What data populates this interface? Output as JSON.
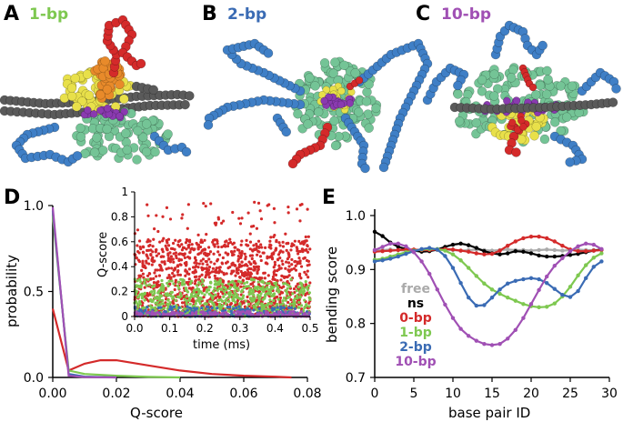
{
  "panels": {
    "A": {
      "letter": "A",
      "title": "1-bp",
      "title_color": "#7ec850"
    },
    "B": {
      "letter": "B",
      "title": "2-bp",
      "title_color": "#3a6bb4"
    },
    "C": {
      "letter": "C",
      "title": "10-bp",
      "title_color": "#a050b4"
    },
    "D": {
      "letter": "D"
    },
    "E": {
      "letter": "E"
    }
  },
  "colors": {
    "dna": "#5a5a5a",
    "h3": "#3f7fc6",
    "h4": "#e8e04a",
    "h2a": "#d42a2a",
    "h2b": "#74c496",
    "orange": "#e88a2a",
    "purple": "#8a3ab0"
  },
  "chart_data": [
    {
      "type": "line",
      "panel": "D",
      "xlabel": "Q-score",
      "ylabel": "probability",
      "xlim": [
        0,
        0.08
      ],
      "ylim": [
        0,
        1.0
      ],
      "xticks": [
        "0.00",
        "0.02",
        "0.04",
        "0.06",
        "0.08"
      ],
      "yticks": [
        "0.0",
        "0.5",
        "1.0"
      ],
      "series": [
        {
          "color": "#d42a2a",
          "x": [
            0,
            0.005,
            0.01,
            0.015,
            0.02,
            0.03,
            0.04,
            0.05,
            0.06,
            0.07,
            0.075
          ],
          "y": [
            0.4,
            0.04,
            0.08,
            0.1,
            0.1,
            0.07,
            0.04,
            0.02,
            0.01,
            0.004,
            0
          ]
        },
        {
          "color": "#7ec850",
          "x": [
            0,
            0.005,
            0.01,
            0.02,
            0.03,
            0.04
          ],
          "y": [
            0.94,
            0.04,
            0.02,
            0.01,
            0.003,
            0
          ]
        },
        {
          "color": "#3a6bb4",
          "x": [
            0,
            0.005,
            0.01,
            0.02
          ],
          "y": [
            0.97,
            0.02,
            0.005,
            0
          ]
        },
        {
          "color": "#a050b4",
          "x": [
            0,
            0.005,
            0.01,
            0.02
          ],
          "y": [
            0.99,
            0.01,
            0.002,
            0
          ]
        }
      ]
    },
    {
      "type": "scatter",
      "panel": "D-inset",
      "xlabel": "time (ms)",
      "ylabel": "Q-score",
      "xlim": [
        0,
        0.5
      ],
      "ylim": [
        0,
        1.0
      ],
      "xticks": [
        "0.0",
        "0.1",
        "0.2",
        "0.3",
        "0.4",
        "0.5"
      ],
      "yticks": [
        "0",
        "0.2",
        "0.4",
        "0.6",
        "0.8",
        "1"
      ],
      "series": [
        {
          "color": "#d42a2a",
          "band": [
            0.0,
            0.62
          ],
          "density": "high"
        },
        {
          "color": "#7ec850",
          "band": [
            0.0,
            0.3
          ],
          "density": "medium"
        },
        {
          "color": "#3a6bb4",
          "band": [
            0.0,
            0.08
          ],
          "density": "low"
        },
        {
          "color": "#a050b4",
          "band": [
            0.0,
            0.04
          ],
          "density": "low"
        }
      ]
    },
    {
      "type": "line",
      "panel": "E",
      "xlabel": "base pair ID",
      "ylabel": "bending score",
      "xlim": [
        0,
        30
      ],
      "ylim": [
        0.7,
        1.0
      ],
      "xticks": [
        "0",
        "5",
        "10",
        "15",
        "20",
        "25",
        "30"
      ],
      "yticks": [
        "0.7",
        "0.8",
        "0.9",
        "1.0"
      ],
      "legend": [
        "free",
        "ns",
        "0-bp",
        "1-bp",
        "2-bp",
        "10-bp"
      ],
      "series": [
        {
          "name": "free",
          "color": "#aaaaaa",
          "x": [
            0,
            1,
            2,
            3,
            4,
            5,
            6,
            7,
            8,
            9,
            10,
            11,
            12,
            13,
            14,
            15,
            16,
            17,
            18,
            19,
            20,
            21,
            22,
            23,
            24,
            25,
            26,
            27,
            28,
            29
          ],
          "y": [
            0.936,
            0.936,
            0.937,
            0.936,
            0.935,
            0.936,
            0.937,
            0.936,
            0.936,
            0.937,
            0.936,
            0.935,
            0.936,
            0.937,
            0.936,
            0.935,
            0.936,
            0.937,
            0.936,
            0.936,
            0.935,
            0.936,
            0.937,
            0.936,
            0.935,
            0.936,
            0.937,
            0.936,
            0.936,
            0.937
          ]
        },
        {
          "name": "ns",
          "color": "#000000",
          "x": [
            0,
            1,
            2,
            3,
            4,
            5,
            6,
            7,
            8,
            9,
            10,
            11,
            12,
            13,
            14,
            15,
            16,
            17,
            18,
            19,
            20,
            21,
            22,
            23,
            24,
            25,
            26,
            27,
            28,
            29
          ],
          "y": [
            0.97,
            0.962,
            0.95,
            0.942,
            0.938,
            0.935,
            0.933,
            0.934,
            0.937,
            0.942,
            0.946,
            0.948,
            0.945,
            0.94,
            0.934,
            0.93,
            0.928,
            0.93,
            0.934,
            0.933,
            0.93,
            0.926,
            0.924,
            0.924,
            0.925,
            0.927,
            0.929,
            0.932,
            0.935,
            0.937
          ]
        },
        {
          "name": "0-bp",
          "color": "#d42a2a",
          "x": [
            0,
            1,
            2,
            3,
            4,
            5,
            6,
            7,
            8,
            9,
            10,
            11,
            12,
            13,
            14,
            15,
            16,
            17,
            18,
            19,
            20,
            21,
            22,
            23,
            24,
            25,
            26,
            27,
            28,
            29
          ],
          "y": [
            0.933,
            0.934,
            0.935,
            0.936,
            0.937,
            0.937,
            0.936,
            0.936,
            0.937,
            0.938,
            0.937,
            0.935,
            0.933,
            0.93,
            0.928,
            0.929,
            0.935,
            0.944,
            0.952,
            0.958,
            0.961,
            0.961,
            0.958,
            0.952,
            0.944,
            0.937,
            0.934,
            0.934,
            0.935,
            0.936
          ]
        },
        {
          "name": "1-bp",
          "color": "#7ec850",
          "x": [
            0,
            1,
            2,
            3,
            4,
            5,
            6,
            7,
            8,
            9,
            10,
            11,
            12,
            13,
            14,
            15,
            16,
            17,
            18,
            19,
            20,
            21,
            22,
            23,
            24,
            25,
            26,
            27,
            28,
            29
          ],
          "y": [
            0.918,
            0.92,
            0.924,
            0.928,
            0.932,
            0.935,
            0.937,
            0.938,
            0.938,
            0.935,
            0.928,
            0.917,
            0.903,
            0.888,
            0.874,
            0.863,
            0.855,
            0.848,
            0.842,
            0.836,
            0.832,
            0.83,
            0.831,
            0.837,
            0.85,
            0.868,
            0.889,
            0.908,
            0.922,
            0.93
          ]
        },
        {
          "name": "2-bp",
          "color": "#3a6bb4",
          "x": [
            0,
            1,
            2,
            3,
            4,
            5,
            6,
            7,
            8,
            9,
            10,
            11,
            12,
            13,
            14,
            15,
            16,
            17,
            18,
            19,
            20,
            21,
            22,
            23,
            24,
            25,
            26,
            27,
            28,
            29
          ],
          "y": [
            0.915,
            0.917,
            0.92,
            0.924,
            0.929,
            0.934,
            0.938,
            0.94,
            0.937,
            0.925,
            0.903,
            0.875,
            0.848,
            0.833,
            0.834,
            0.848,
            0.863,
            0.874,
            0.879,
            0.882,
            0.884,
            0.882,
            0.875,
            0.864,
            0.853,
            0.849,
            0.86,
            0.884,
            0.905,
            0.915
          ]
        },
        {
          "name": "10-bp",
          "color": "#a050b4",
          "x": [
            0,
            1,
            2,
            3,
            4,
            5,
            6,
            7,
            8,
            9,
            10,
            11,
            12,
            13,
            14,
            15,
            16,
            17,
            18,
            19,
            20,
            21,
            22,
            23,
            24,
            25,
            26,
            27,
            28,
            29
          ],
          "y": [
            0.936,
            0.942,
            0.948,
            0.948,
            0.943,
            0.932,
            0.915,
            0.892,
            0.863,
            0.835,
            0.81,
            0.79,
            0.777,
            0.768,
            0.762,
            0.76,
            0.762,
            0.772,
            0.788,
            0.81,
            0.836,
            0.862,
            0.887,
            0.907,
            0.921,
            0.934,
            0.943,
            0.948,
            0.946,
            0.938
          ]
        }
      ]
    }
  ]
}
